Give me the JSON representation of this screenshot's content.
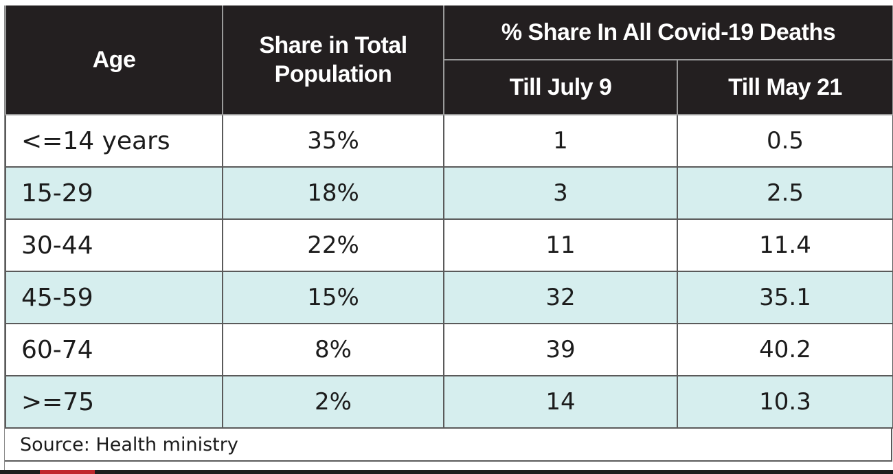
{
  "chart_data": {
    "type": "table",
    "header": {
      "age": "Age",
      "share_total": "Share in Total Population",
      "covid_group": "% Share In All Covid-19 Deaths",
      "till_july": "Till July 9",
      "till_may": "Till May 21"
    },
    "rows": [
      {
        "age": "<=14 years",
        "share": "35%",
        "july": "1",
        "may": "0.5"
      },
      {
        "age": "15-29",
        "share": "18%",
        "july": "3",
        "may": "2.5"
      },
      {
        "age": "30-44",
        "share": "22%",
        "july": "11",
        "may": "11.4"
      },
      {
        "age": "45-59",
        "share": "15%",
        "july": "32",
        "may": "35.1"
      },
      {
        "age": "60-74",
        "share": "8%",
        "july": "39",
        "may": "40.2"
      },
      {
        "age": ">=75",
        "share": "2%",
        "july": "14",
        "may": "10.3"
      }
    ],
    "source": "Source: Health ministry"
  },
  "colors": {
    "header_bg": "#231f20",
    "header_text": "#ffffff",
    "shaded_row": "#d6eeee",
    "plain_row": "#ffffff"
  }
}
